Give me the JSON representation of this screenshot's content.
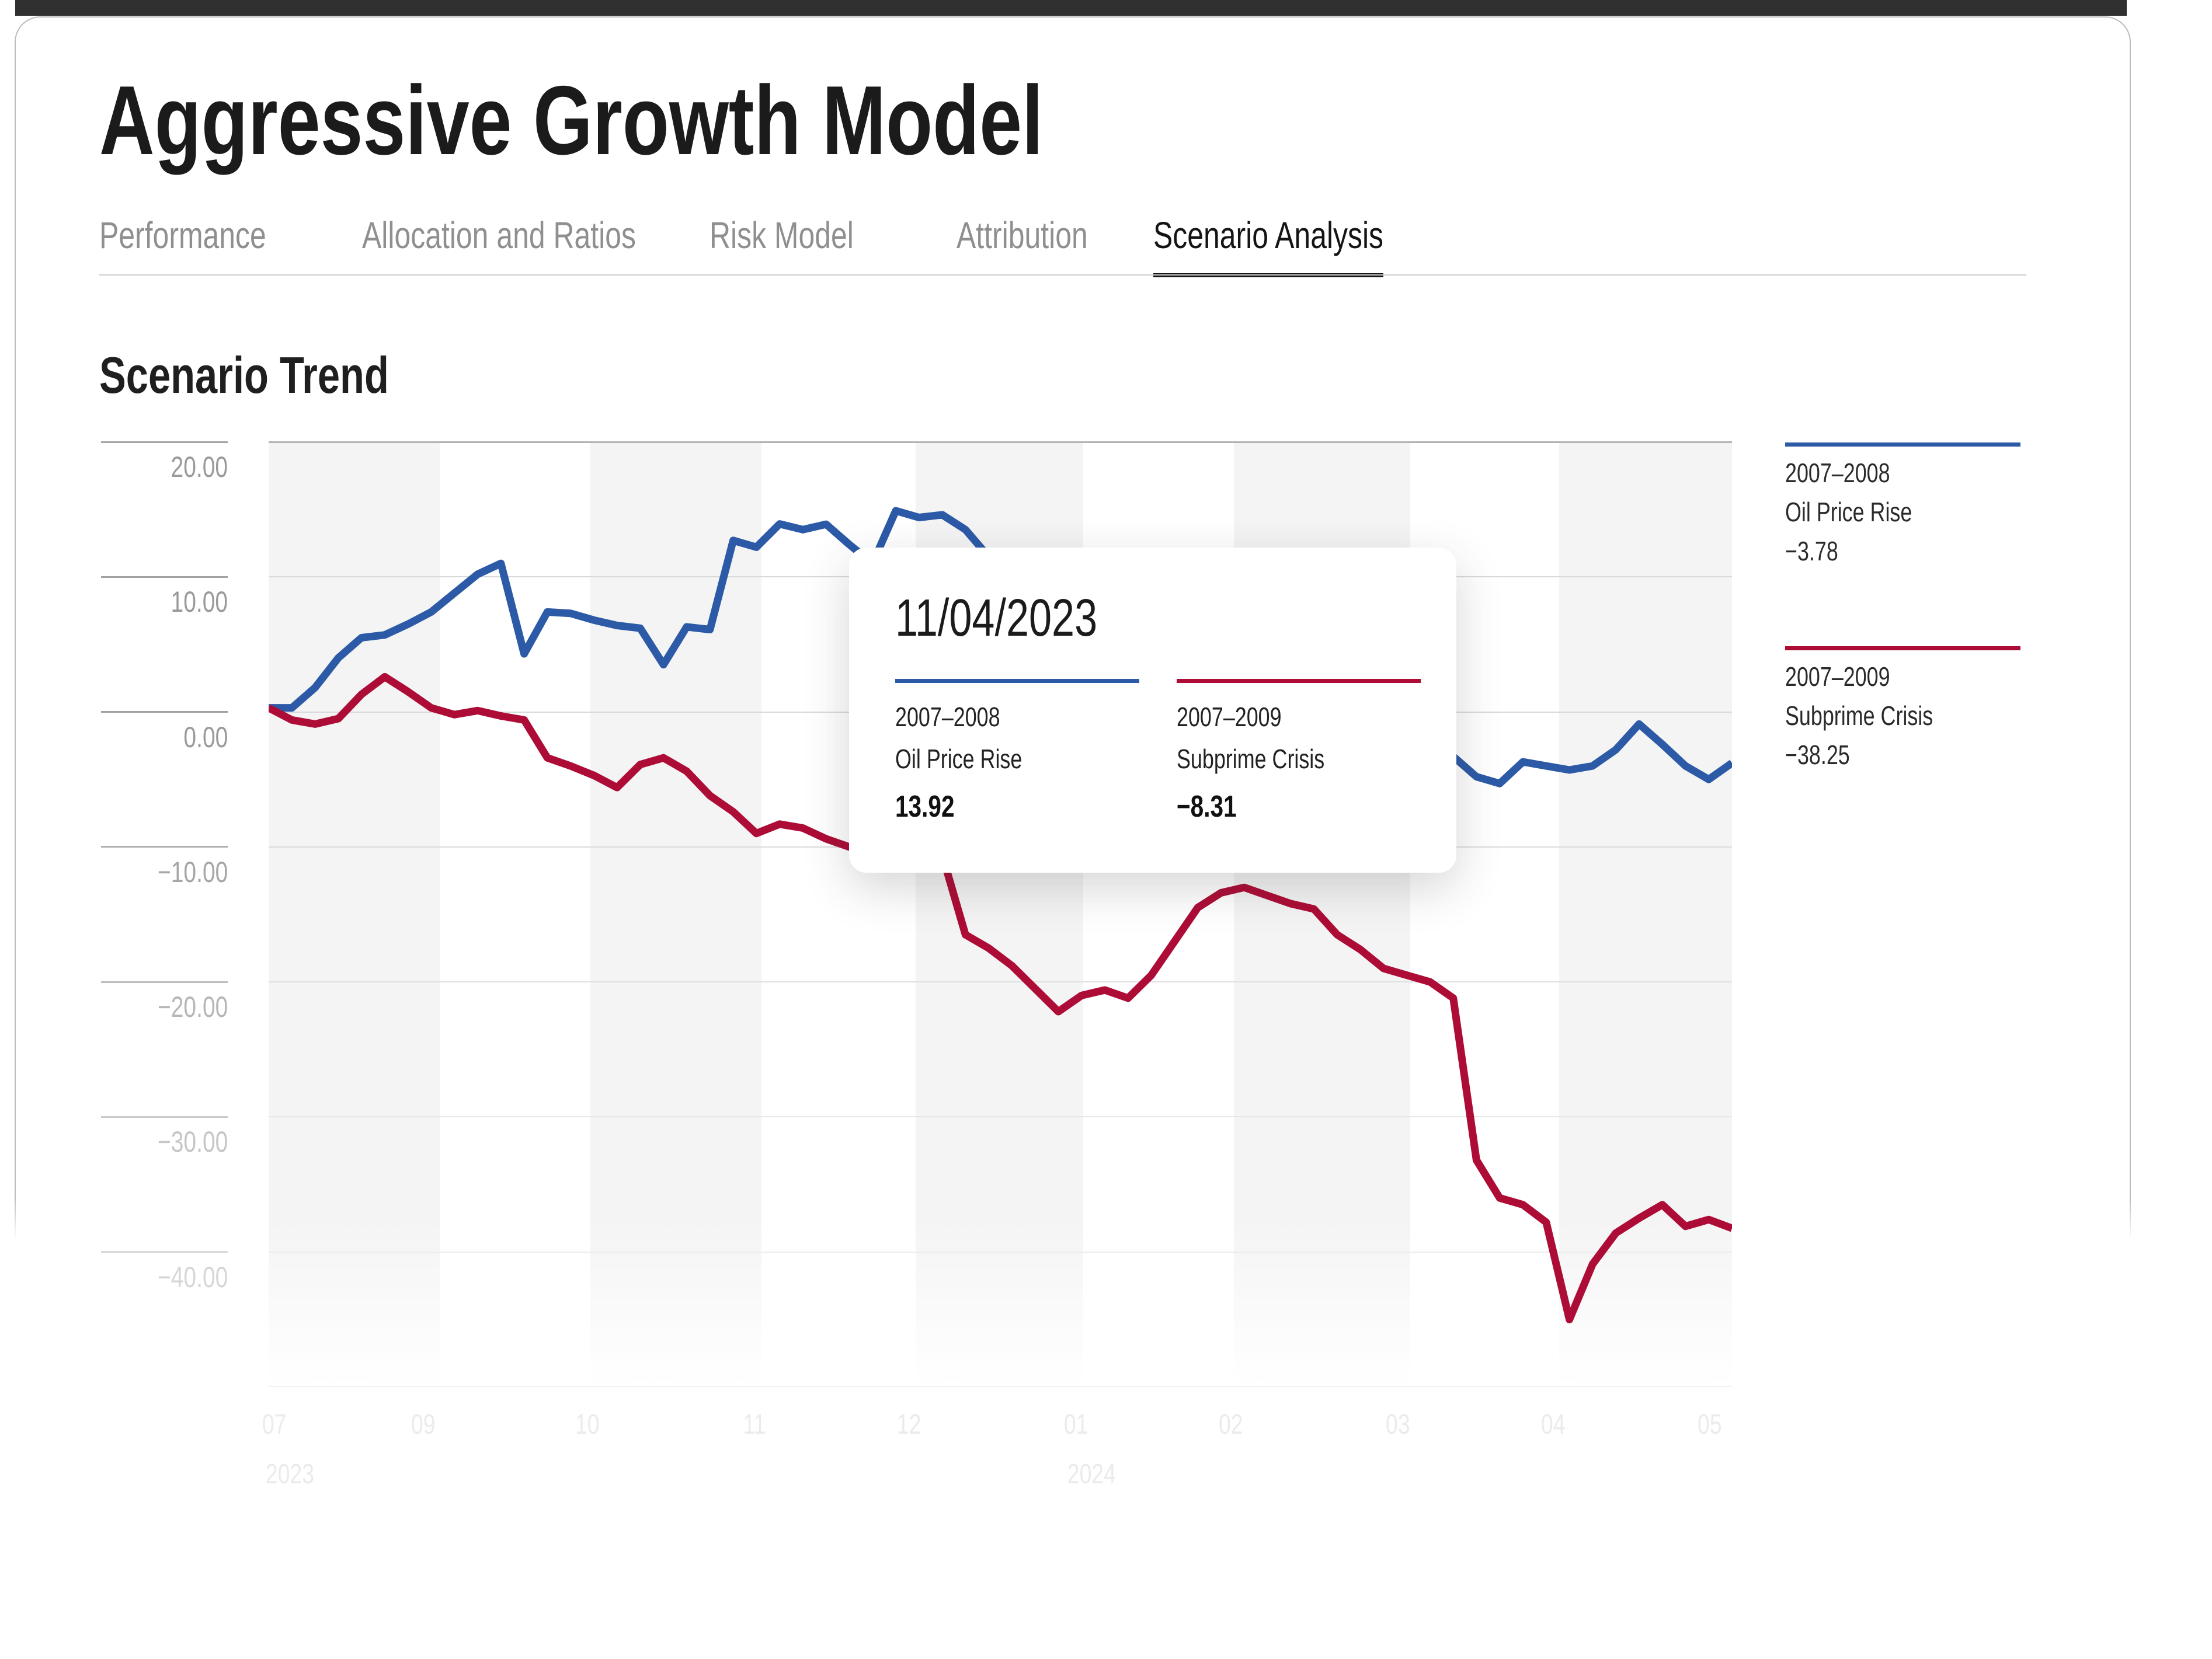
{
  "page_title": "Aggressive Growth Model",
  "tabs": [
    {
      "label": "Performance",
      "active": false
    },
    {
      "label": "Allocation and Ratios",
      "active": false
    },
    {
      "label": "Risk Model",
      "active": false
    },
    {
      "label": "Attribution",
      "active": false
    },
    {
      "label": "Scenario Analysis",
      "active": true
    }
  ],
  "section_title": "Scenario Trend",
  "tooltip": {
    "date": "11/04/2023",
    "series": [
      {
        "period": "2007–2008",
        "name": "Oil Price Rise",
        "value": "13.92",
        "color": "#2c5aa7"
      },
      {
        "period": "2007–2009",
        "name": "Subprime Crisis",
        "value": "−8.31",
        "color": "#ad0c36"
      }
    ]
  },
  "legend": [
    {
      "period": "2007–2008",
      "name": "Oil Price Rise",
      "value": "−3.78",
      "color": "#2c5aa7"
    },
    {
      "period": "2007–2009",
      "name": "Subprime Crisis",
      "value": "−38.25",
      "color": "#ad0c36"
    }
  ],
  "chart_data": {
    "type": "line",
    "title": "Scenario Trend",
    "xlabel": "",
    "ylabel": "",
    "ylim": [
      -50,
      20
    ],
    "grid": true,
    "legend_position": "right",
    "y_ticks": [
      {
        "value": 20,
        "label": "20.00"
      },
      {
        "value": 10,
        "label": "10.00"
      },
      {
        "value": 0,
        "label": "0.00"
      },
      {
        "value": -10,
        "label": "−10.00"
      },
      {
        "value": -20,
        "label": "−20.00"
      },
      {
        "value": -30,
        "label": "−30.00"
      },
      {
        "value": -40,
        "label": "−40.00"
      }
    ],
    "x_ticks": [
      {
        "label": "07",
        "pos": 0.009
      },
      {
        "label": "09",
        "pos": 0.111
      },
      {
        "label": "10",
        "pos": 0.223
      },
      {
        "label": "11",
        "pos": 0.338
      },
      {
        "label": "12",
        "pos": 0.443
      },
      {
        "label": "01",
        "pos": 0.557
      },
      {
        "label": "02",
        "pos": 0.663
      },
      {
        "label": "03",
        "pos": 0.777
      },
      {
        "label": "04",
        "pos": 0.883
      },
      {
        "label": "05",
        "pos": 0.99
      }
    ],
    "x_years": [
      {
        "label": "2023",
        "pos": 0.009
      },
      {
        "label": "2024",
        "pos": 0.557
      }
    ],
    "month_bands": [
      [
        0,
        0.1169
      ],
      [
        0.2199,
        0.3368
      ],
      [
        0.4421,
        0.5566
      ],
      [
        0.6596,
        0.7801
      ],
      [
        0.8819,
        1.0
      ]
    ],
    "series": [
      {
        "name": "2007–2008 Oil Price Rise",
        "color": "#2c5aa7",
        "last_value": -3.78,
        "values": [
          0.3,
          0.3,
          1.8,
          4.0,
          5.5,
          5.7,
          6.5,
          7.4,
          8.8,
          10.2,
          11.0,
          4.3,
          7.4,
          7.3,
          6.8,
          6.4,
          6.2,
          3.5,
          6.3,
          6.1,
          12.7,
          12.2,
          13.92,
          13.5,
          13.9,
          12.4,
          11.0,
          14.9,
          14.4,
          14.6,
          13.5,
          11.5,
          9.5,
          7.5,
          5.5,
          3.5,
          1.5,
          -0.5,
          -2.0,
          -3.0,
          -3.5,
          -3.8,
          -4.0,
          -4.2,
          -4.3,
          -4.4,
          -4.2,
          -4.0,
          -3.9,
          -4.1,
          -4.3,
          -3.3,
          -4.8,
          -5.3,
          -3.7,
          -4.0,
          -4.3,
          -4.0,
          -2.8,
          -0.9,
          -2.4,
          -4.0,
          -5.0,
          -3.78
        ]
      },
      {
        "name": "2007–2009 Subprime Crisis",
        "color": "#ad0c36",
        "last_value": -38.25,
        "values": [
          0.3,
          -0.6,
          -0.9,
          -0.5,
          1.3,
          2.6,
          1.5,
          0.3,
          -0.2,
          0.1,
          -0.3,
          -0.6,
          -3.4,
          -4.0,
          -4.7,
          -5.6,
          -3.9,
          -3.4,
          -4.4,
          -6.2,
          -7.4,
          -9.0,
          -8.31,
          -8.6,
          -9.4,
          -10.0,
          -9.6,
          -10.2,
          -10.4,
          -10.6,
          -16.5,
          -17.5,
          -18.8,
          -20.5,
          -22.2,
          -21.0,
          -20.6,
          -21.2,
          -19.5,
          -17.0,
          -14.5,
          -13.4,
          -13.0,
          -13.6,
          -14.2,
          -14.6,
          -16.5,
          -17.6,
          -19.0,
          -19.5,
          -20.0,
          -21.2,
          -33.2,
          -36.0,
          -36.5,
          -37.8,
          -45.0,
          -40.9,
          -38.6,
          -37.5,
          -36.5,
          -38.1,
          -37.6,
          -38.25
        ]
      }
    ]
  }
}
